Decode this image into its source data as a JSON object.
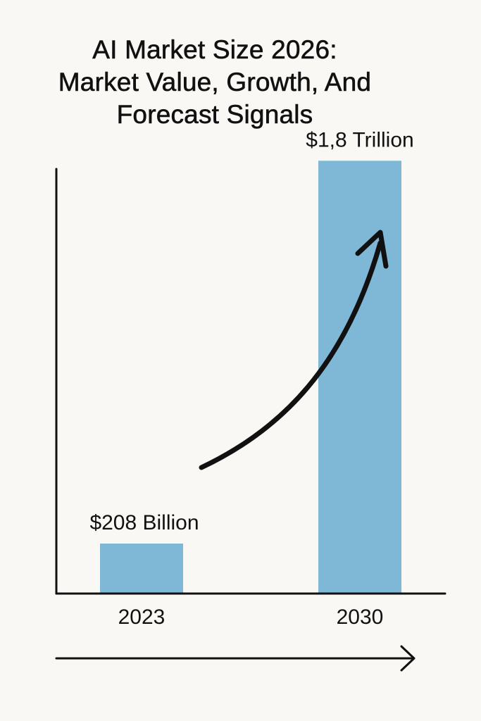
{
  "title_lines": [
    "AI Market Size 2026:",
    "Market Value, Growth, And",
    "Forecast Signals"
  ],
  "colors": {
    "background": "#faf8f4",
    "bar": "#7fb7d6",
    "ink": "#111111"
  },
  "chart_data": {
    "type": "bar",
    "title": "AI Market Size 2026: Market Value, Growth, And Forecast Signals",
    "categories": [
      "2023",
      "2030"
    ],
    "values": [
      208,
      1800
    ],
    "unit": "billion USD",
    "data_labels": [
      "$208 Billion",
      "$1,8 Trillion"
    ],
    "xlabel": "",
    "ylabel": "",
    "ylim": [
      0,
      2000
    ],
    "grid": false,
    "legend": "none",
    "annotations": [
      {
        "type": "curved-arrow",
        "from_category": "2023",
        "to_category": "2030"
      },
      {
        "type": "horizontal-arrow",
        "below": "x-axis"
      }
    ]
  }
}
